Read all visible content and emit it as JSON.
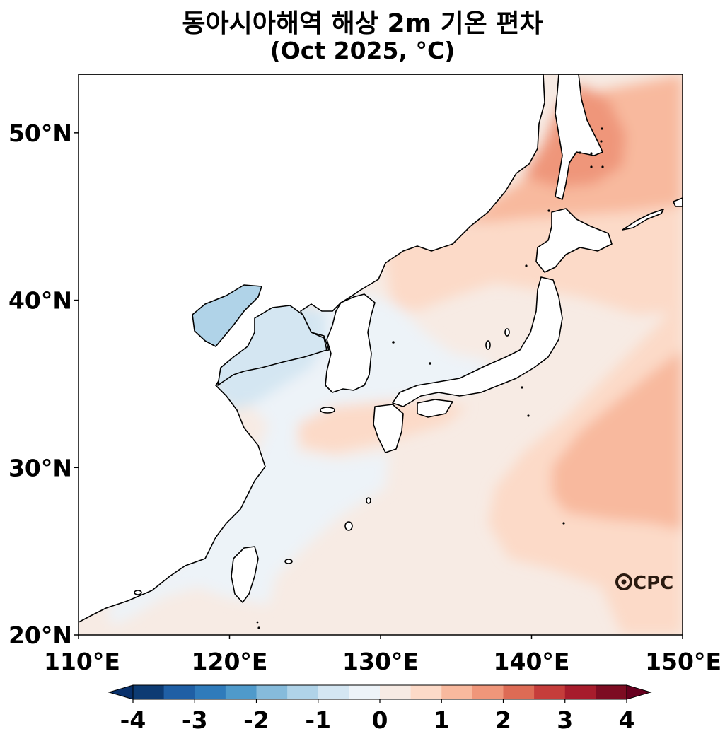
{
  "title": {
    "line1": "동아시아해역 해상 2m 기온 편차",
    "line2": "(Oct 2025, °C)"
  },
  "map": {
    "lon_range": [
      110,
      150
    ],
    "lat_range": [
      20,
      53.5
    ],
    "x_ticks": [
      {
        "lon": 110,
        "label": "110°E"
      },
      {
        "lon": 120,
        "label": "120°E"
      },
      {
        "lon": 130,
        "label": "130°E"
      },
      {
        "lon": 140,
        "label": "140°E"
      },
      {
        "lon": 150,
        "label": "150°E"
      }
    ],
    "y_ticks": [
      {
        "lat": 20,
        "label": "20°N"
      },
      {
        "lat": 30,
        "label": "30°N"
      },
      {
        "lat": 40,
        "label": "40°N"
      },
      {
        "lat": 50,
        "label": "50°N"
      }
    ],
    "logo": "CPC"
  },
  "colorbar": {
    "min": -4,
    "max": 4,
    "step": 0.5,
    "extend": "both",
    "tick_labels": [
      "-4",
      "-3",
      "-2",
      "-1",
      "0",
      "1",
      "2",
      "3",
      "4"
    ],
    "colors": [
      "#0d3b73",
      "#1f5fa5",
      "#2f7bbb",
      "#4f9acb",
      "#86bbdb",
      "#b0d3e8",
      "#d4e6f2",
      "#edf3f8",
      "#f7ebe4",
      "#fcdac8",
      "#f8b99e",
      "#ef967a",
      "#dd6b55",
      "#c53d3b",
      "#a71c2c",
      "#7d0c22"
    ],
    "left_color": "#08306b",
    "right_color": "#67001f"
  }
}
